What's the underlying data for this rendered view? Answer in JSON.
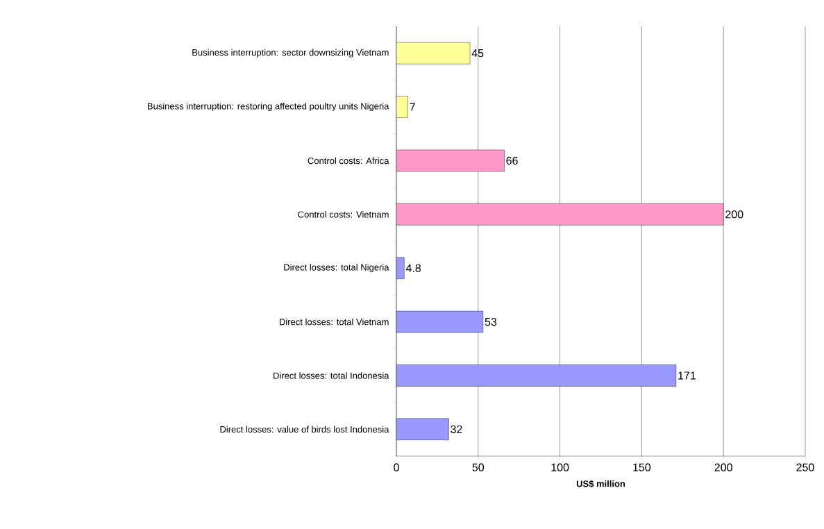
{
  "chart_data": {
    "type": "bar",
    "orientation": "horizontal",
    "xlabel": "US$ million",
    "categories": [
      "Business interruption: sector downsizing Vietnam",
      "Business interruption: restoring affected poultry units Nigeria",
      "Control costs: Africa",
      "Control costs: Vietnam",
      "Direct losses: total Nigeria",
      "Direct losses: total Vietnam",
      "Direct losses: total Indonesia",
      "Direct losses: value of birds lost Indonesia"
    ],
    "values": [
      45,
      7,
      66,
      200,
      4.8,
      53,
      171,
      32
    ],
    "colors": [
      "#ffff99",
      "#ffff99",
      "#ff99cc",
      "#ff99cc",
      "#9999ff",
      "#9999ff",
      "#9999ff",
      "#9999ff"
    ],
    "xlim": [
      0,
      250
    ],
    "xticks": [
      0,
      50,
      100,
      150,
      200,
      250
    ],
    "grid": "x",
    "data_labels": true
  }
}
